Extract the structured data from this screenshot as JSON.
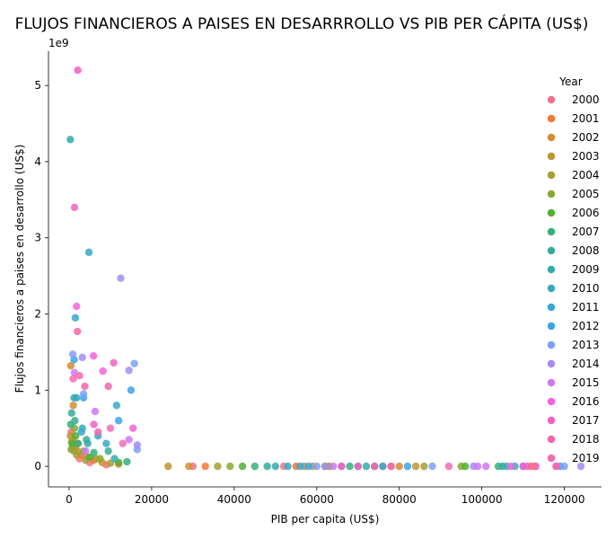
{
  "chart_data": {
    "type": "scatter",
    "title": "FLUJOS FINANCIEROS A PAISES EN DESARRROLLO VS PIB PER CÁPITA (US$)",
    "xlabel": "PIB per capita (US$)",
    "ylabel": "Flujos financieros a paises en desarrollo (US$)",
    "y_offset_text": "1e9",
    "xlim": [
      -5000,
      129000
    ],
    "ylim": [
      -0.27,
      5.45
    ],
    "x_ticks": [
      0,
      20000,
      40000,
      60000,
      80000,
      100000,
      120000
    ],
    "x_tick_labels": [
      "0",
      "20000",
      "40000",
      "60000",
      "80000",
      "100000",
      "120000"
    ],
    "y_ticks": [
      0,
      1,
      2,
      3,
      4,
      5
    ],
    "y_tick_labels": [
      "0",
      "1",
      "2",
      "3",
      "4",
      "5"
    ],
    "grid": false,
    "legend": {
      "title": "Year",
      "placement": "right",
      "entries": [
        "2000",
        "2001",
        "2002",
        "2003",
        "2004",
        "2005",
        "2006",
        "2007",
        "2008",
        "2009",
        "2010",
        "2011",
        "2012",
        "2013",
        "2014",
        "2015",
        "2016",
        "2017",
        "2018",
        "2019"
      ],
      "colors": [
        "#f77189",
        "#f57732",
        "#d58c32",
        "#bb9832",
        "#a4a031",
        "#88a931",
        "#50b131",
        "#33b07a",
        "#34ad96",
        "#35abaa",
        "#36a9bc",
        "#38a7d0",
        "#3ba3ec",
        "#809ff4",
        "#a48cf4",
        "#cc79f4",
        "#f461dd",
        "#f45fc2",
        "#f565a9",
        "#f56bb0"
      ]
    },
    "series": [
      {
        "name": "2000",
        "points": [
          [
            500,
            0.45
          ],
          [
            1200,
            0.2
          ],
          [
            2500,
            0.1
          ],
          [
            5000,
            0.05
          ],
          [
            9000,
            0.02
          ],
          [
            30000,
            0
          ],
          [
            52000,
            0
          ],
          [
            76000,
            0
          ],
          [
            113000,
            0
          ]
        ]
      },
      {
        "name": "2001",
        "points": [
          [
            600,
            0.32
          ],
          [
            1500,
            0.25
          ],
          [
            3000,
            0.15
          ],
          [
            6000,
            0.08
          ],
          [
            12000,
            0.03
          ],
          [
            33000,
            0
          ],
          [
            55000,
            0
          ],
          [
            78000,
            0
          ],
          [
            112000,
            0
          ]
        ]
      },
      {
        "name": "2002",
        "points": [
          [
            400,
            1.32
          ],
          [
            1000,
            0.8
          ],
          [
            2200,
            0.3
          ],
          [
            4500,
            0.12
          ],
          [
            8000,
            0.05
          ],
          [
            29000,
            0
          ],
          [
            57000,
            0
          ],
          [
            80000,
            0
          ]
        ]
      },
      {
        "name": "2003",
        "points": [
          [
            300,
            0.4
          ],
          [
            900,
            0.35
          ],
          [
            2000,
            0.2
          ],
          [
            6500,
            0.1
          ],
          [
            24000,
            0
          ],
          [
            59000,
            0
          ],
          [
            84000,
            0
          ]
        ]
      },
      {
        "name": "2004",
        "points": [
          [
            800,
            0.25
          ],
          [
            1800,
            0.15
          ],
          [
            4000,
            0.08
          ],
          [
            10000,
            0.04
          ],
          [
            36000,
            0
          ],
          [
            62000,
            0
          ],
          [
            86000,
            0
          ]
        ]
      },
      {
        "name": "2005",
        "points": [
          [
            500,
            0.22
          ],
          [
            1300,
            0.5
          ],
          [
            3500,
            0.2
          ],
          [
            7500,
            0.1
          ],
          [
            39000,
            0
          ],
          [
            63000,
            0
          ],
          [
            95000,
            0
          ]
        ]
      },
      {
        "name": "2006",
        "points": [
          [
            700,
            0.3
          ],
          [
            1600,
            0.4
          ],
          [
            5000,
            0.12
          ],
          [
            12000,
            0.05
          ],
          [
            42000,
            0
          ],
          [
            66000,
            0
          ],
          [
            96000,
            0
          ]
        ]
      },
      {
        "name": "2007",
        "points": [
          [
            400,
            0.55
          ],
          [
            2100,
            0.3
          ],
          [
            6000,
            0.18
          ],
          [
            14000,
            0.06
          ],
          [
            45000,
            0
          ],
          [
            68000,
            0
          ],
          [
            104000,
            0
          ]
        ]
      },
      {
        "name": "2008",
        "points": [
          [
            600,
            0.7
          ],
          [
            1400,
            0.6
          ],
          [
            4200,
            0.35
          ],
          [
            9500,
            0.2
          ],
          [
            48000,
            0
          ],
          [
            70000,
            0
          ],
          [
            105000,
            0
          ]
        ]
      },
      {
        "name": "2009",
        "points": [
          [
            300,
            4.29
          ],
          [
            1200,
            0.9
          ],
          [
            4500,
            0.3
          ],
          [
            11000,
            0.1
          ],
          [
            50000,
            0
          ],
          [
            72000,
            0
          ],
          [
            106000,
            0
          ]
        ]
      },
      {
        "name": "2010",
        "points": [
          [
            4800,
            2.81
          ],
          [
            1800,
            0.9
          ],
          [
            3200,
            0.5
          ],
          [
            9000,
            0.3
          ],
          [
            53000,
            0
          ],
          [
            74000,
            0
          ],
          [
            108000,
            0
          ]
        ]
      },
      {
        "name": "2011",
        "points": [
          [
            1500,
            1.95
          ],
          [
            11500,
            0.8
          ],
          [
            3000,
            0.45
          ],
          [
            7000,
            0.4
          ],
          [
            56000,
            0
          ],
          [
            76000,
            0
          ],
          [
            110000,
            0
          ]
        ]
      },
      {
        "name": "2012",
        "points": [
          [
            1200,
            1.4
          ],
          [
            15000,
            1.0
          ],
          [
            3500,
            0.9
          ],
          [
            12000,
            0.6
          ],
          [
            58000,
            0
          ],
          [
            82000,
            0
          ],
          [
            119000,
            0
          ]
        ]
      },
      {
        "name": "2013",
        "points": [
          [
            900,
            1.47
          ],
          [
            15800,
            1.35
          ],
          [
            3500,
            0.95
          ],
          [
            16500,
            0.22
          ],
          [
            60000,
            0
          ],
          [
            88000,
            0
          ],
          [
            120000,
            0
          ]
        ]
      },
      {
        "name": "2014",
        "points": [
          [
            12500,
            2.47
          ],
          [
            14500,
            1.26
          ],
          [
            3200,
            1.43
          ],
          [
            16500,
            0.28
          ],
          [
            62000,
            0
          ],
          [
            98000,
            0
          ],
          [
            124000,
            0
          ]
        ]
      },
      {
        "name": "2015",
        "points": [
          [
            1300,
            1.23
          ],
          [
            6300,
            0.72
          ],
          [
            14500,
            0.35
          ],
          [
            4000,
            0.2
          ],
          [
            64000,
            0
          ],
          [
            99000,
            0
          ],
          [
            101000,
            0
          ]
        ]
      },
      {
        "name": "2016",
        "points": [
          [
            1800,
            2.1
          ],
          [
            5900,
            1.45
          ],
          [
            8200,
            1.25
          ],
          [
            15500,
            0.5
          ],
          [
            66000,
            0
          ],
          [
            107000,
            0
          ],
          [
            110000,
            0
          ]
        ]
      },
      {
        "name": "2017",
        "points": [
          [
            2100,
            5.2
          ],
          [
            1300,
            3.4
          ],
          [
            10800,
            1.36
          ],
          [
            6000,
            0.55
          ],
          [
            70000,
            0
          ],
          [
            111000,
            0
          ],
          [
            118000,
            0
          ]
        ]
      },
      {
        "name": "2018",
        "points": [
          [
            2000,
            1.77
          ],
          [
            9500,
            1.05
          ],
          [
            3800,
            1.05
          ],
          [
            7000,
            0.45
          ],
          [
            74000,
            0
          ],
          [
            113000,
            0
          ],
          [
            118000,
            0
          ]
        ]
      },
      {
        "name": "2019",
        "points": [
          [
            1000,
            1.15
          ],
          [
            2500,
            1.19
          ],
          [
            10000,
            0.5
          ],
          [
            13000,
            0.3
          ],
          [
            78000,
            0
          ],
          [
            92000,
            0
          ],
          [
            113000,
            0
          ]
        ]
      }
    ]
  }
}
